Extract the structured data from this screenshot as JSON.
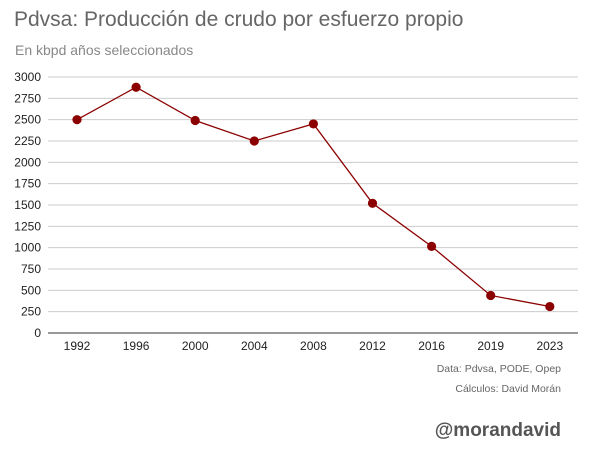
{
  "chart_data": {
    "type": "line",
    "title": "Pdvsa: Producción de crudo por esfuerzo propio",
    "subtitle": "En kbpd años seleccionados",
    "categories": [
      "1992",
      "1996",
      "2000",
      "2004",
      "2008",
      "2012",
      "2016",
      "2019",
      "2023"
    ],
    "series": [
      {
        "values": [
          2500,
          2880,
          2490,
          2250,
          2450,
          1520,
          1015,
          440,
          310
        ],
        "color": "#8b0000"
      }
    ],
    "yticks": [
      0,
      250,
      500,
      750,
      1000,
      1250,
      1500,
      1750,
      2000,
      2250,
      2500,
      2750,
      3000
    ],
    "ylim": [
      0,
      3000
    ],
    "grid": true,
    "legend": "none"
  },
  "source": {
    "data": "Data: Pdvsa, PODE, Opep",
    "calc": "Cálculos: David Morán"
  },
  "watermark": "@morandavid",
  "colors": {
    "line": "#8b0000",
    "marker": "#8b0000",
    "grid": "#cccccc",
    "axis": "#333333"
  }
}
